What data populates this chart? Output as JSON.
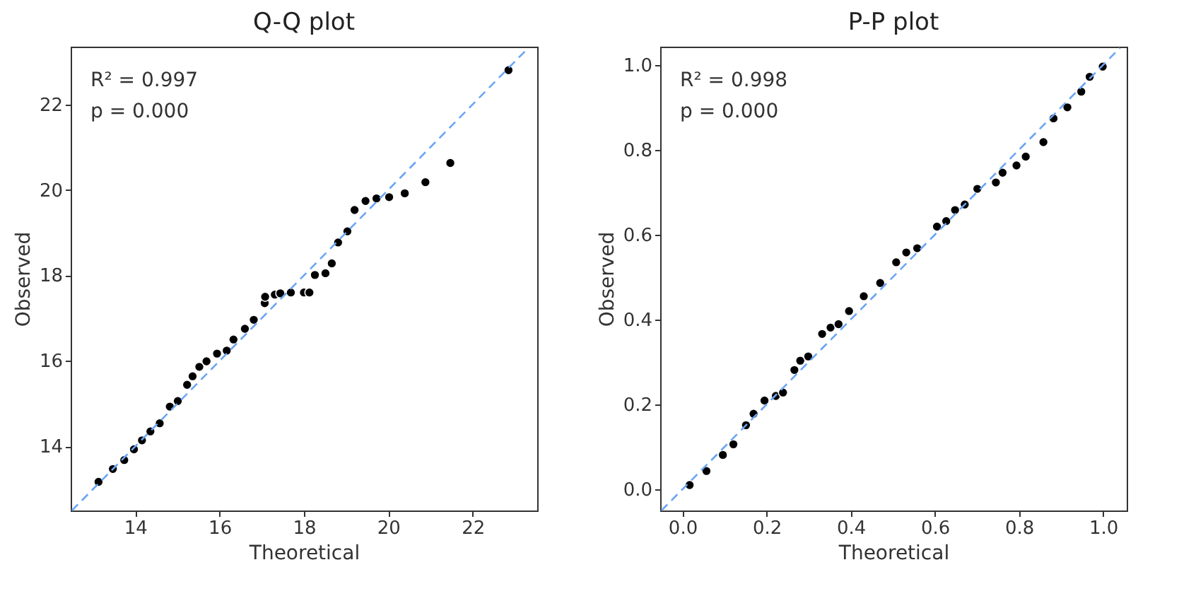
{
  "chart_data": [
    {
      "type": "scatter",
      "title": "Q-Q plot",
      "xlabel": "Theoretical",
      "ylabel": "Observed",
      "xlim": [
        12.47,
        23.53
      ],
      "ylim": [
        12.5,
        23.35
      ],
      "xticks": [
        14,
        16,
        18,
        20,
        22
      ],
      "yticks": [
        14,
        16,
        18,
        20,
        22
      ],
      "grid": false,
      "marker": "circle",
      "annotations": [
        "R² = 0.997",
        "p = 0.000"
      ],
      "series": [
        {
          "type": "scatter",
          "color": "#000000",
          "x": [
            13.13,
            13.47,
            13.74,
            13.97,
            14.16,
            14.36,
            14.58,
            14.82,
            15.01,
            15.23,
            15.36,
            15.52,
            15.69,
            15.94,
            16.17,
            16.33,
            16.6,
            16.81,
            17.07,
            17.08,
            17.31,
            17.44,
            17.69,
            18.0,
            18.13,
            18.26,
            18.51,
            18.66,
            18.81,
            19.03,
            19.2,
            19.46,
            19.72,
            20.02,
            20.39,
            20.88,
            21.47,
            22.85
          ],
          "values": [
            13.17,
            13.47,
            13.68,
            13.93,
            14.14,
            14.35,
            14.54,
            14.93,
            15.06,
            15.44,
            15.64,
            15.86,
            15.99,
            16.17,
            16.24,
            16.5,
            16.75,
            16.96,
            17.35,
            17.5,
            17.55,
            17.58,
            17.6,
            17.6,
            17.6,
            18.01,
            18.05,
            18.28,
            18.77,
            19.03,
            19.53,
            19.74,
            19.8,
            19.83,
            19.92,
            20.18,
            20.63,
            22.8
          ]
        },
        {
          "type": "line",
          "color": "#6aa5f5",
          "line_style": "dashed",
          "marker": "none",
          "x": [
            12.5,
            23.3
          ],
          "values": [
            12.5,
            23.3
          ]
        }
      ]
    },
    {
      "type": "scatter",
      "title": "P-P plot",
      "xlabel": "Theoretical",
      "ylabel": "Observed",
      "xlim": [
        -0.053,
        1.056
      ],
      "ylim": [
        -0.05,
        1.043
      ],
      "xticks": [
        {
          "value": 0,
          "label": "0.0"
        },
        0.2,
        0.4,
        0.6,
        0.8,
        {
          "value": 1,
          "label": "1.0"
        }
      ],
      "yticks": [
        {
          "value": 0,
          "label": "0.0"
        },
        0.2,
        0.4,
        0.6,
        0.8,
        {
          "value": 1,
          "label": "1.0"
        }
      ],
      "grid": false,
      "marker": "circle",
      "annotations": [
        "R² = 0.998",
        "p = 0.000"
      ],
      "series": [
        {
          "type": "scatter",
          "color": "#000000",
          "x": [
            0.017,
            0.057,
            0.096,
            0.121,
            0.151,
            0.169,
            0.195,
            0.222,
            0.239,
            0.266,
            0.28,
            0.299,
            0.332,
            0.352,
            0.371,
            0.396,
            0.431,
            0.47,
            0.508,
            0.532,
            0.558,
            0.605,
            0.627,
            0.648,
            0.671,
            0.701,
            0.745,
            0.761,
            0.794,
            0.816,
            0.858,
            0.882,
            0.915,
            0.948,
            0.968,
            0.999
          ],
          "values": [
            0.01,
            0.043,
            0.081,
            0.106,
            0.151,
            0.178,
            0.209,
            0.22,
            0.228,
            0.281,
            0.303,
            0.313,
            0.366,
            0.381,
            0.389,
            0.42,
            0.455,
            0.486,
            0.535,
            0.558,
            0.568,
            0.619,
            0.632,
            0.658,
            0.671,
            0.708,
            0.723,
            0.746,
            0.763,
            0.784,
            0.818,
            0.874,
            0.9,
            0.937,
            0.972,
            0.996
          ]
        },
        {
          "type": "line",
          "color": "#6aa5f5",
          "line_style": "dashed",
          "marker": "none",
          "x": [
            -0.05,
            1.04
          ],
          "values": [
            -0.05,
            1.04
          ]
        }
      ]
    }
  ]
}
